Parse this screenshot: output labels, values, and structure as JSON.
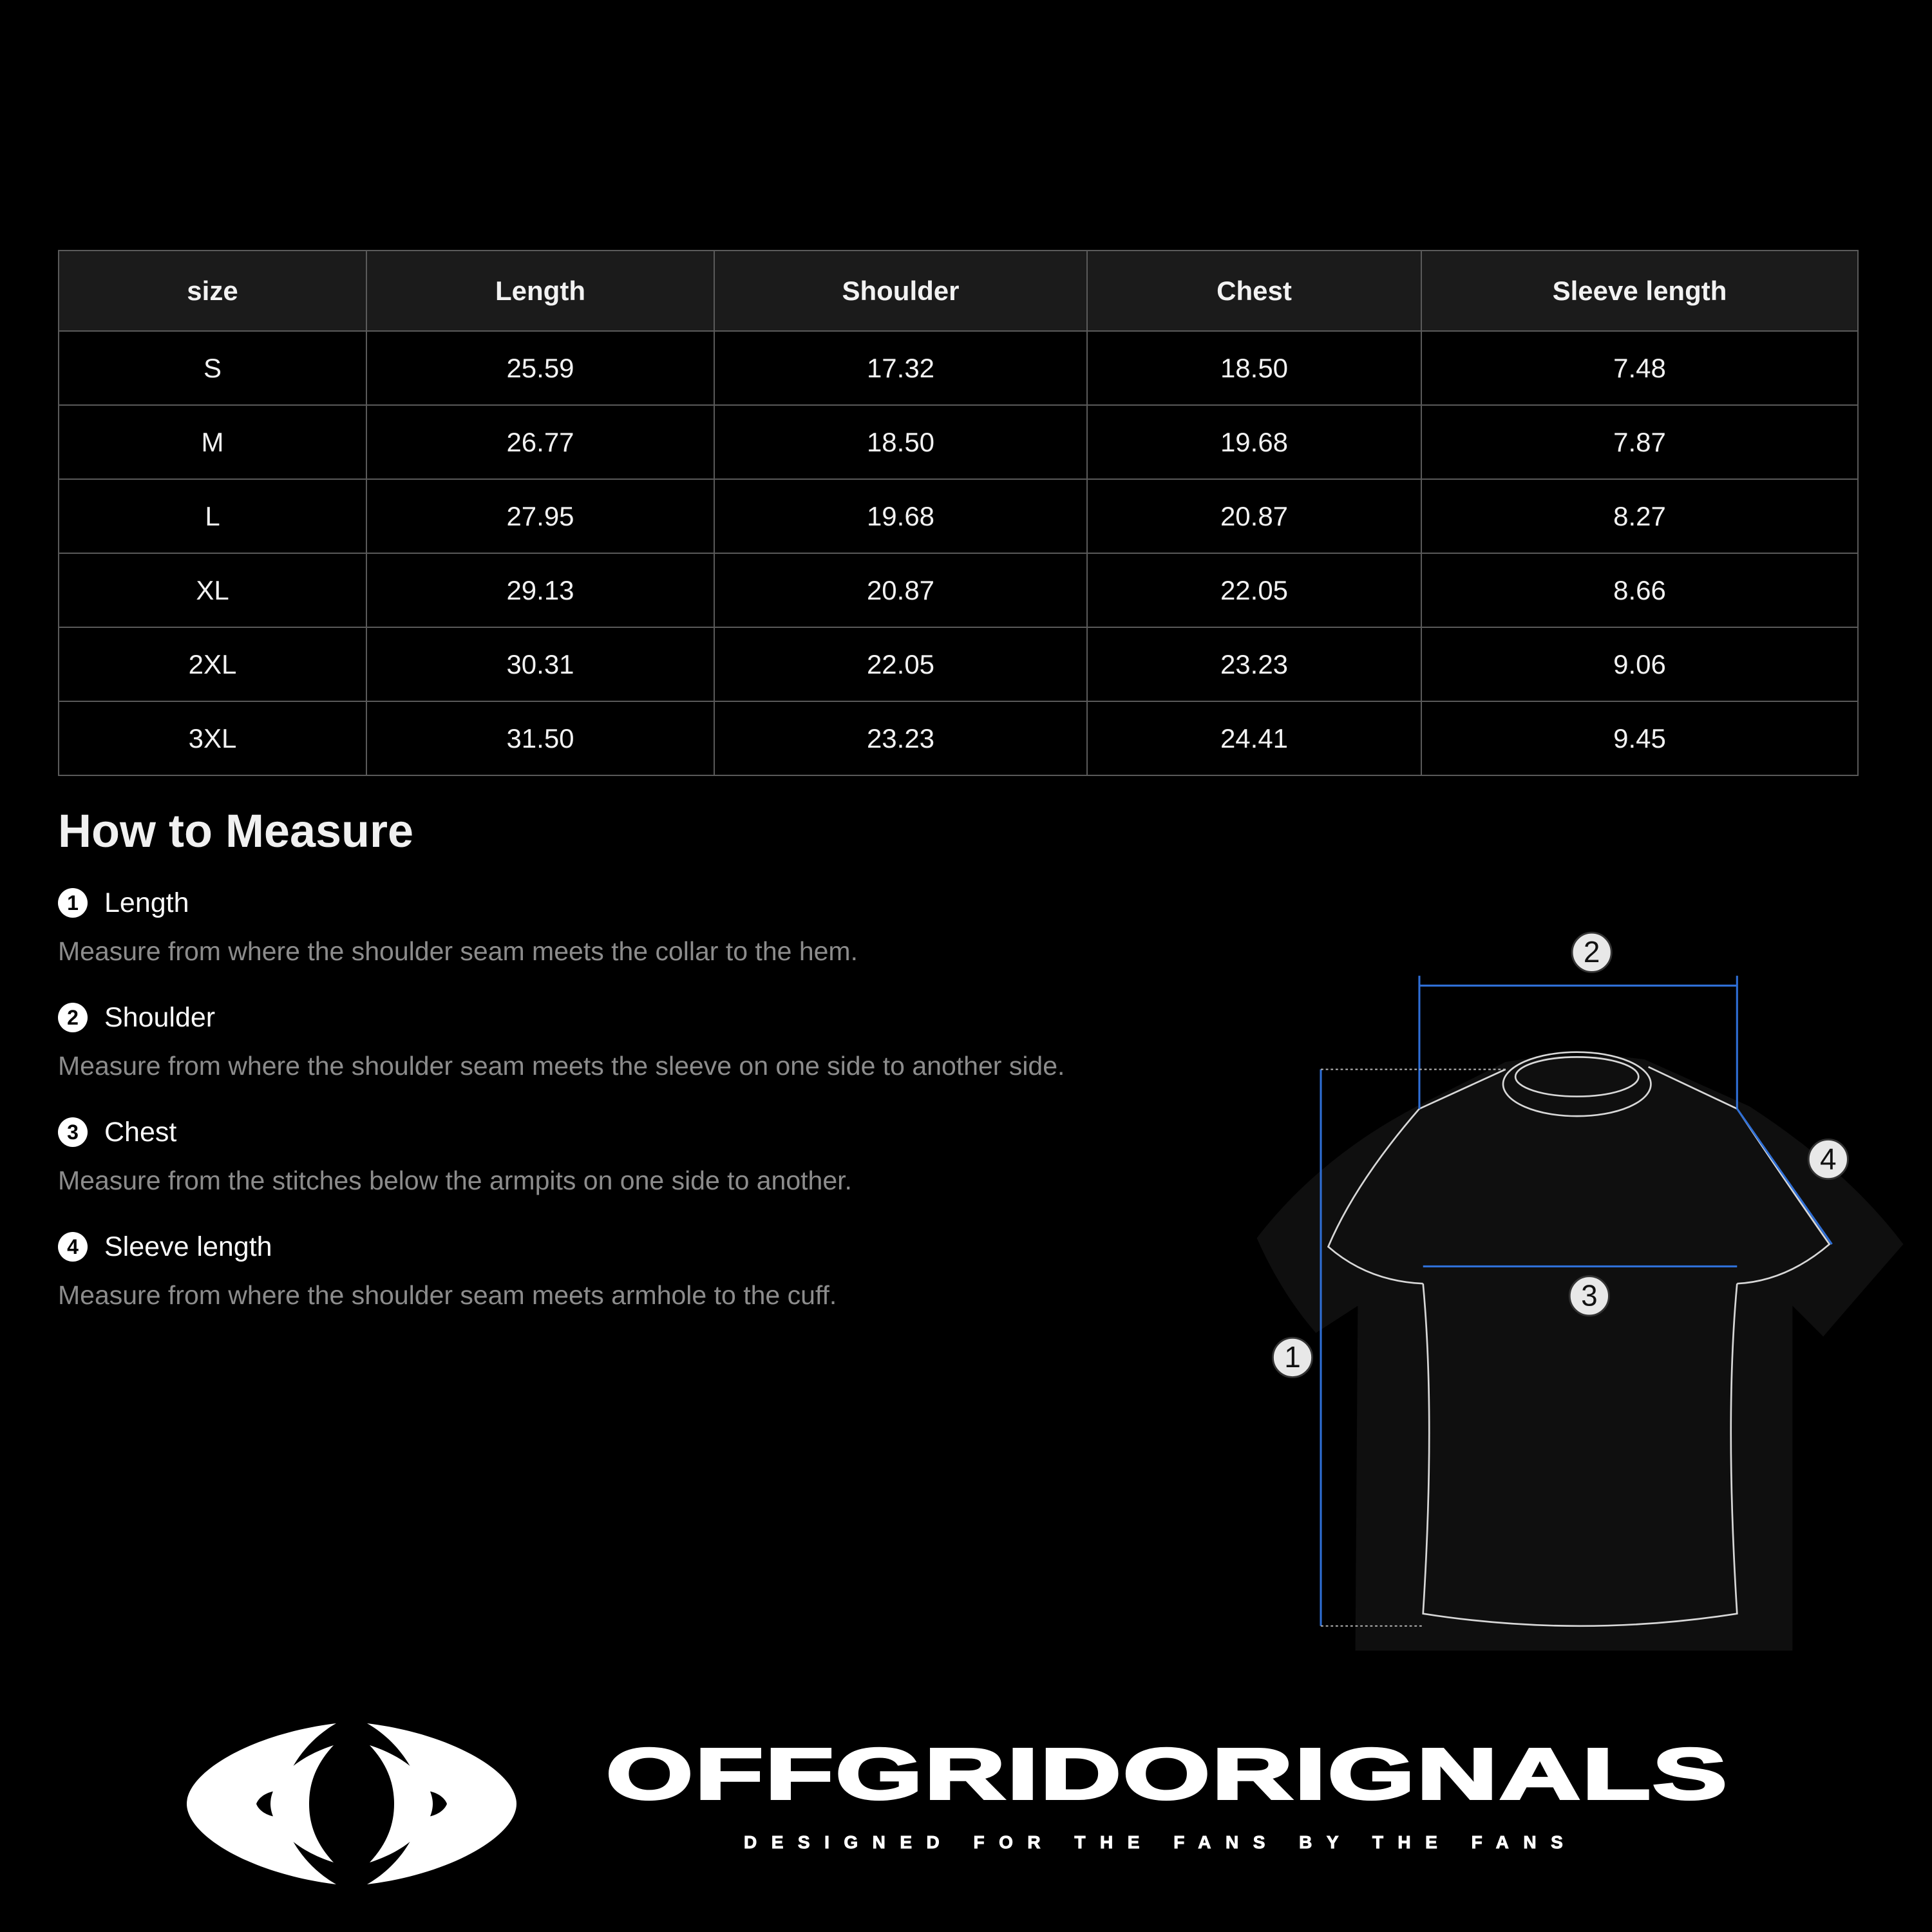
{
  "table": {
    "headers": [
      "size",
      "Length",
      "Shoulder",
      "Chest",
      "Sleeve length"
    ],
    "rows": [
      [
        "S",
        "25.59",
        "17.32",
        "18.50",
        "7.48"
      ],
      [
        "M",
        "26.77",
        "18.50",
        "19.68",
        "7.87"
      ],
      [
        "L",
        "27.95",
        "19.68",
        "20.87",
        "8.27"
      ],
      [
        "XL",
        "29.13",
        "20.87",
        "22.05",
        "8.66"
      ],
      [
        "2XL",
        "30.31",
        "22.05",
        "23.23",
        "9.06"
      ],
      [
        "3XL",
        "31.50",
        "23.23",
        "24.41",
        "9.45"
      ]
    ]
  },
  "howto": {
    "title": "How to Measure",
    "items": [
      {
        "num": "1",
        "title": "Length",
        "desc": "Measure from where the shoulder seam meets the collar to the hem."
      },
      {
        "num": "2",
        "title": "Shoulder",
        "desc": "Measure from where the shoulder seam meets the sleeve on one side to another side."
      },
      {
        "num": "3",
        "title": "Chest",
        "desc": "Measure from the stitches below the armpits on one side to another."
      },
      {
        "num": "4",
        "title": "Sleeve length",
        "desc": "Measure from where the shoulder seam meets armhole to the cuff."
      }
    ]
  },
  "diagram": {
    "markers": [
      "1",
      "2",
      "3",
      "4"
    ],
    "guide_color": "#2f6fd6"
  },
  "brand": {
    "name": "OFFGRIDORIGNALS",
    "tagline": "DESIGNED FOR THE FANS BY THE FANS"
  }
}
